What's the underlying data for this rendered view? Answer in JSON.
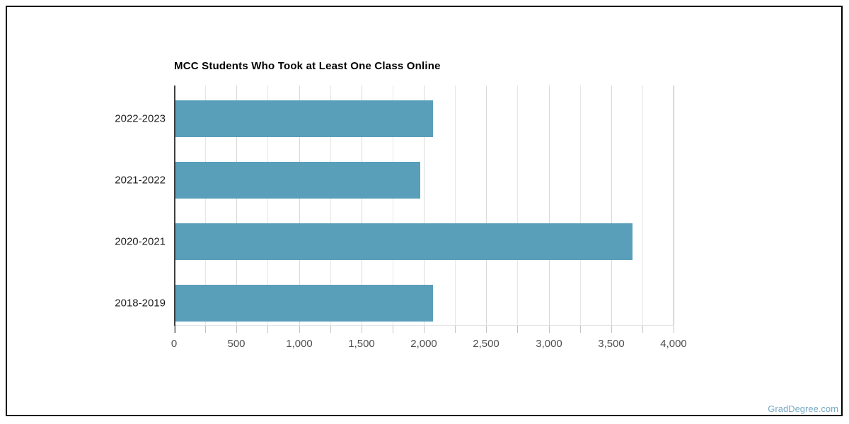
{
  "page": {
    "watermark": "GradDegree.com",
    "background": "#ffffff",
    "border_color": "#000000"
  },
  "chart_data": {
    "type": "bar",
    "orientation": "horizontal",
    "title": "MCC Students Who Took at Least One Class Online",
    "categories": [
      "2022-2023",
      "2021-2022",
      "2020-2021",
      "2018-2019"
    ],
    "values": [
      2060,
      1960,
      3660,
      2060
    ],
    "xlabel": "",
    "ylabel": "",
    "xlim": [
      0,
      4000
    ],
    "x_tick_labels": [
      "0",
      "500",
      "1,000",
      "1,500",
      "2,000",
      "2,500",
      "3,000",
      "3,500",
      "4,000"
    ],
    "x_major_tick_step": 500,
    "x_minor_tick_step": 250,
    "grid": true,
    "legend": false,
    "bar_color": "#5a9fba",
    "axis_color": "#3f3f3f",
    "gridline_color": "#e6e6e6"
  }
}
